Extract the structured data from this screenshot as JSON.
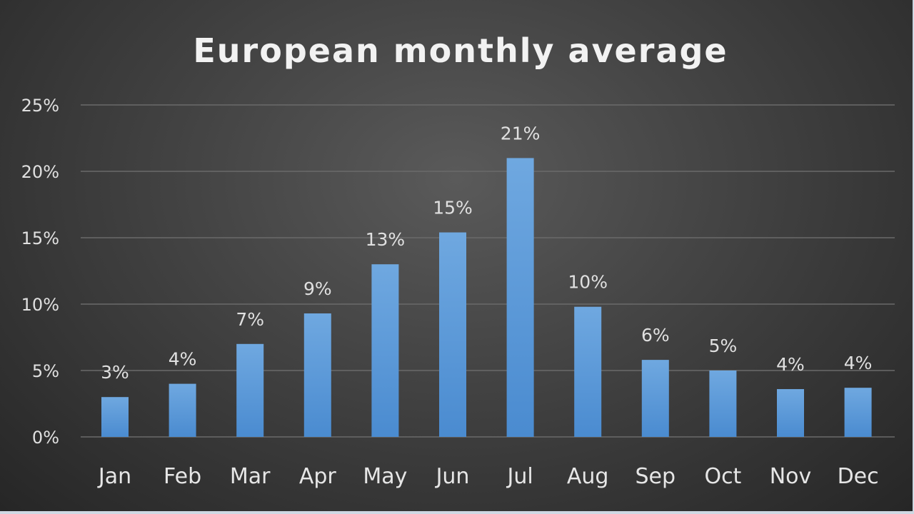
{
  "chart_data": {
    "type": "bar",
    "title": "European monthly average",
    "categories": [
      "Jan",
      "Feb",
      "Mar",
      "Apr",
      "May",
      "Jun",
      "Jul",
      "Aug",
      "Sep",
      "Oct",
      "Nov",
      "Dec"
    ],
    "values": [
      3,
      4,
      7,
      9.3,
      13,
      15.4,
      21,
      9.8,
      5.8,
      5,
      3.6,
      3.7
    ],
    "data_labels": [
      "3%",
      "4%",
      "7%",
      "9%",
      "13%",
      "15%",
      "21%",
      "10%",
      "6%",
      "5%",
      "4%",
      "4%"
    ],
    "yticks": [
      0,
      5,
      10,
      15,
      20,
      25
    ],
    "ytick_labels": [
      "0%",
      "5%",
      "10%",
      "15%",
      "20%",
      "25%"
    ],
    "ylim": [
      0,
      25
    ],
    "xlabel": "",
    "ylabel": "",
    "grid": true,
    "legend": "none",
    "colors": {
      "bar_top": "#6fa8e0",
      "bar_bottom": "#4a8bd0"
    }
  }
}
